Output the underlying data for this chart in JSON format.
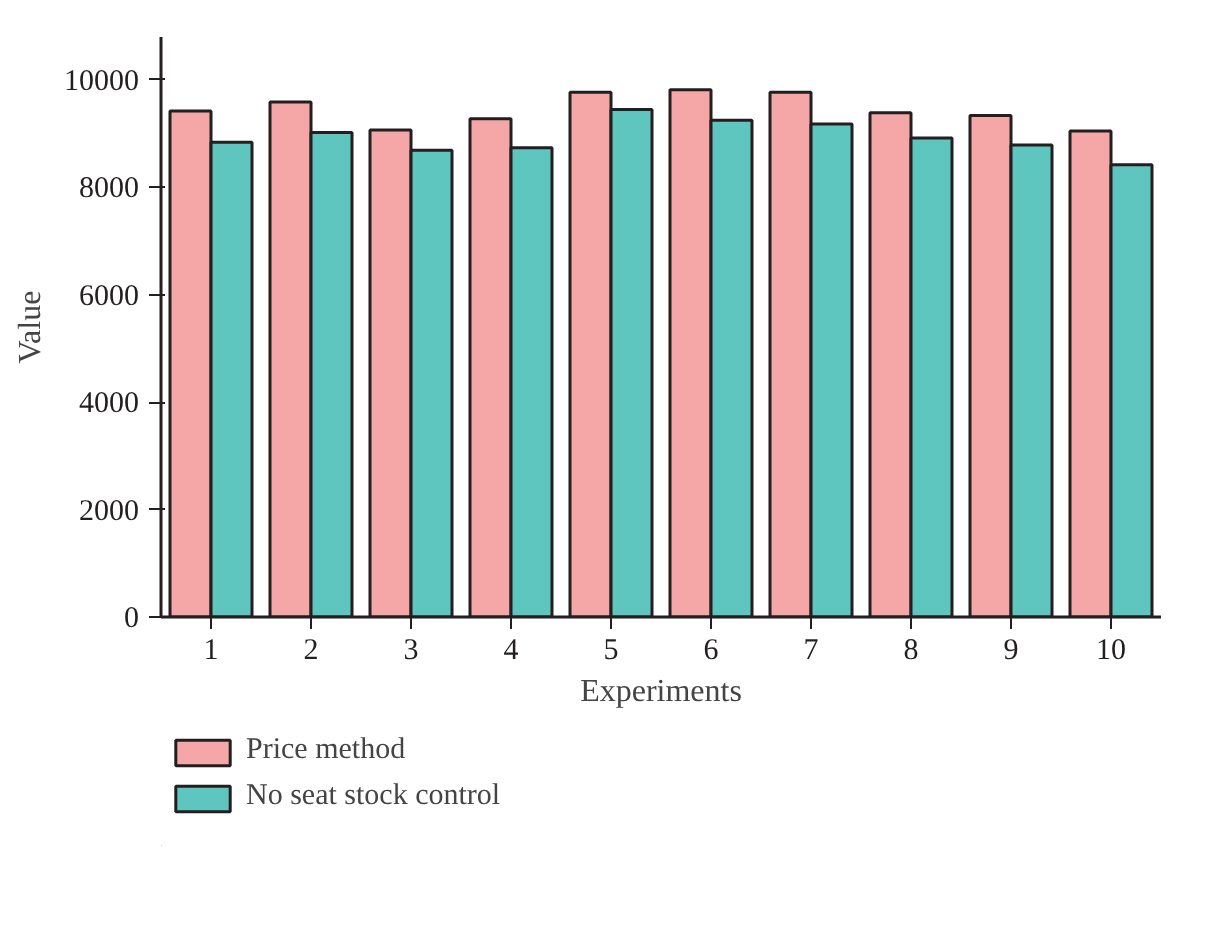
{
  "chart_data": {
    "type": "bar",
    "xlabel": "Experiments",
    "ylabel": "Value",
    "categories": [
      "1",
      "2",
      "3",
      "4",
      "5",
      "6",
      "7",
      "8",
      "9",
      "10"
    ],
    "series": [
      {
        "name": "Price method",
        "color": "#f4a7a6",
        "values": [
          9420,
          9590,
          9070,
          9280,
          9770,
          9820,
          9770,
          9390,
          9340,
          9050
        ]
      },
      {
        "name": "No seat stock control",
        "color": "#5fc5bf",
        "values": [
          8840,
          9020,
          8690,
          8740,
          9450,
          9250,
          9180,
          8920,
          8790,
          8420
        ]
      }
    ],
    "ylim": [
      0,
      10800
    ],
    "yticks": [
      0,
      2000,
      4000,
      6000,
      8000,
      10000
    ],
    "grid": false,
    "legend": "bottom"
  }
}
